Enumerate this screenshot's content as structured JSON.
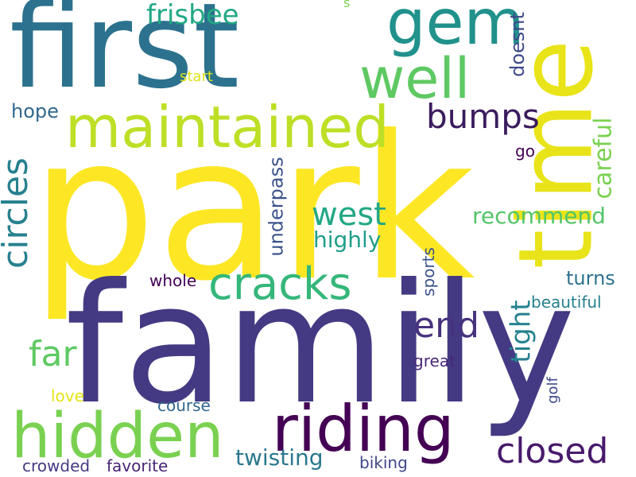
{
  "words": [
    {
      "text": "park",
      "color": "#fde725"
    },
    {
      "text": "family",
      "color": "#443a83"
    },
    {
      "text": "first",
      "color": "#2c728e"
    },
    {
      "text": "time",
      "color": "#e8e419"
    },
    {
      "text": "maintained",
      "color": "#bddf26"
    },
    {
      "text": "hidden",
      "color": "#7ad151"
    },
    {
      "text": "riding",
      "color": "#440154"
    },
    {
      "text": "gem",
      "color": "#21918c"
    },
    {
      "text": "well",
      "color": "#5ec962"
    },
    {
      "text": "cracks",
      "color": "#35b779"
    },
    {
      "text": "circles",
      "color": "#27808e"
    },
    {
      "text": "closed",
      "color": "#481a6c"
    },
    {
      "text": "end",
      "color": "#46327e"
    },
    {
      "text": "west",
      "color": "#22a884"
    },
    {
      "text": "bumps",
      "color": "#3b1c5e"
    },
    {
      "text": "far",
      "color": "#5ec962"
    },
    {
      "text": "tight",
      "color": "#26828e"
    },
    {
      "text": "frisbee",
      "color": "#22a884"
    },
    {
      "text": "careful",
      "color": "#7ad151"
    },
    {
      "text": "recommend",
      "color": "#54c568"
    },
    {
      "text": "underpass",
      "color": "#3b528b"
    },
    {
      "text": "highly",
      "color": "#1f9e89"
    },
    {
      "text": "twisting",
      "color": "#2a788e"
    },
    {
      "text": "doesnt",
      "color": "#3e4989"
    },
    {
      "text": "hope",
      "color": "#31688e"
    },
    {
      "text": "turns",
      "color": "#2c728e"
    },
    {
      "text": "sports",
      "color": "#3b528b"
    },
    {
      "text": "beautiful",
      "color": "#27808e"
    },
    {
      "text": "whole",
      "color": "#440154"
    },
    {
      "text": "great",
      "color": "#482878"
    },
    {
      "text": "go",
      "color": "#440154"
    },
    {
      "text": "golf",
      "color": "#3e4989"
    },
    {
      "text": "course",
      "color": "#31688e"
    },
    {
      "text": "love",
      "color": "#e5e419"
    },
    {
      "text": "crowded",
      "color": "#443a83"
    },
    {
      "text": "favorite",
      "color": "#482475"
    },
    {
      "text": "biking",
      "color": "#404688"
    },
    {
      "text": "start",
      "color": "#dde318"
    },
    {
      "text": "s",
      "color": "#7ad151"
    }
  ]
}
